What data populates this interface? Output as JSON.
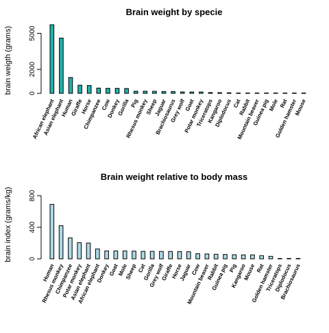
{
  "chart_data": [
    {
      "type": "bar",
      "title": "Brain weight by specie",
      "ylabel": "brain weigth (grams)",
      "xlabel": "",
      "ylim": [
        0,
        6000
      ],
      "yticks": [
        0,
        2000,
        5000
      ],
      "grid": false,
      "legend": "none",
      "bar_color": "#20b2aa",
      "categories": [
        "African elephant",
        "Asian elephant",
        "Human",
        "Giraffe",
        "Horse",
        "Chimpanzee",
        "Cow",
        "Donkey",
        "Gorilla",
        "Pig",
        "Rhesus monkey",
        "Sheep",
        "Jaguar",
        "Brachiosaurus",
        "Grey wolf",
        "Goat",
        "Potar monkey",
        "Triceratops",
        "Kangaroo",
        "Diplodocus",
        "Cat",
        "Rabbit",
        "Mountain beaver",
        "Guinea pig",
        "Mole",
        "Rat",
        "Golden hamster",
        "Mouse"
      ],
      "values": [
        5712,
        4603,
        1320,
        680,
        655,
        440,
        423,
        419,
        406,
        180,
        179,
        175,
        157,
        154.5,
        119.5,
        115,
        115,
        70,
        56,
        50,
        25.6,
        12.1,
        8.1,
        5.5,
        3,
        1.9,
        1,
        0.4
      ]
    },
    {
      "type": "bar",
      "title": "Brain weight relative to body mass",
      "ylabel": "brain index (grams/kg)",
      "xlabel": "",
      "ylim": [
        0,
        800
      ],
      "yticks": [
        0,
        400,
        800
      ],
      "grid": false,
      "legend": "none",
      "bar_color": "#add8e6",
      "categories": [
        "Human",
        "Rhesus monkey",
        "Chimpanzee",
        "Potar monkey",
        "Asian elephant",
        "African elephant",
        "Donkey",
        "Goat",
        "Mole",
        "Sheep",
        "Cat",
        "Gorilla",
        "Grey wolf",
        "Giraffe",
        "Horse",
        "Jaguar",
        "Cow",
        "Mountain beaver",
        "Rabbit",
        "Guinea pig",
        "Pig",
        "Kangaroo",
        "Mouse",
        "Rat",
        "Golden hamster",
        "Triceratops",
        "Diplodocus",
        "Brachiosaurus"
      ],
      "values": [
        690,
        420,
        265,
        205,
        200,
        125,
        100,
        100,
        100,
        98,
        95,
        95,
        94,
        93,
        92,
        90,
        65,
        62,
        58,
        55,
        52,
        50,
        50,
        40,
        32,
        2,
        1,
        1
      ]
    }
  ]
}
